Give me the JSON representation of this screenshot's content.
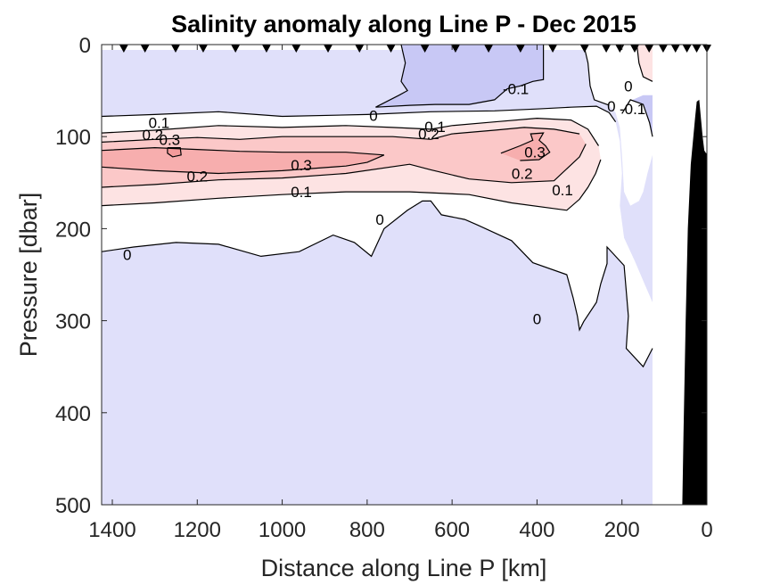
{
  "chart_data": {
    "type": "contour",
    "title": "Salinity anomaly along Line P - Dec 2015",
    "xlabel": "Distance along Line P [km]",
    "ylabel": "Pressure [dbar]",
    "xlim": [
      1425,
      0
    ],
    "ylim": [
      0,
      500
    ],
    "x_reversed": true,
    "y_reversed": true,
    "xticks": [
      1400,
      1200,
      1000,
      800,
      600,
      400,
      200,
      0
    ],
    "yticks": [
      0,
      100,
      200,
      300,
      400,
      500
    ],
    "grid": false,
    "contour_levels": [
      -0.1,
      0,
      0.1,
      0.2,
      0.3
    ],
    "fill_colors": {
      "below_-0.1": "#c8c8f5",
      "-0.1_to_0": "#e0e0fa",
      "0_to_0.1": "#ffffff",
      "0.1_to_0.2": "#fde3e3",
      "0.2_to_0.3": "#fbc8c8",
      "above_0.3": "#f7aeae"
    },
    "data_extent_km": [
      1425,
      128
    ],
    "station_markers_km": [
      1373,
      1323,
      1251,
      1186,
      1110,
      1037,
      967,
      892,
      818,
      744,
      664,
      592,
      514,
      439,
      363,
      288,
      237,
      205,
      170,
      136,
      103,
      74,
      47,
      24,
      0
    ],
    "contour_labels": [
      {
        "text": "0.1",
        "x_km": 1290,
        "p_dbar": 85
      },
      {
        "text": "0.2",
        "x_km": 1305,
        "p_dbar": 98
      },
      {
        "text": "0.3",
        "x_km": 1265,
        "p_dbar": 103
      },
      {
        "text": "0",
        "x_km": 785,
        "p_dbar": 77
      },
      {
        "text": "0.1",
        "x_km": 640,
        "p_dbar": 89
      },
      {
        "text": "0.2",
        "x_km": 655,
        "p_dbar": 97
      },
      {
        "text": "-0.1",
        "x_km": 450,
        "p_dbar": 48
      },
      {
        "text": "0.3",
        "x_km": 955,
        "p_dbar": 131
      },
      {
        "text": "0.3",
        "x_km": 405,
        "p_dbar": 117
      },
      {
        "text": "0.2",
        "x_km": 1200,
        "p_dbar": 143
      },
      {
        "text": "0.2",
        "x_km": 435,
        "p_dbar": 140
      },
      {
        "text": "0.1",
        "x_km": 955,
        "p_dbar": 160
      },
      {
        "text": "0.1",
        "x_km": 340,
        "p_dbar": 158
      },
      {
        "text": "0",
        "x_km": 770,
        "p_dbar": 190
      },
      {
        "text": "0",
        "x_km": 1365,
        "p_dbar": 228
      },
      {
        "text": "0",
        "x_km": 400,
        "p_dbar": 298
      },
      {
        "text": "0",
        "x_km": 185,
        "p_dbar": 45
      },
      {
        "text": "0",
        "x_km": 225,
        "p_dbar": 67
      },
      {
        "text": "-0.1",
        "x_km": 175,
        "p_dbar": 70
      }
    ],
    "bathymetry": "black seafloor profile near 0-60 km, rising to ~60 dbar"
  }
}
